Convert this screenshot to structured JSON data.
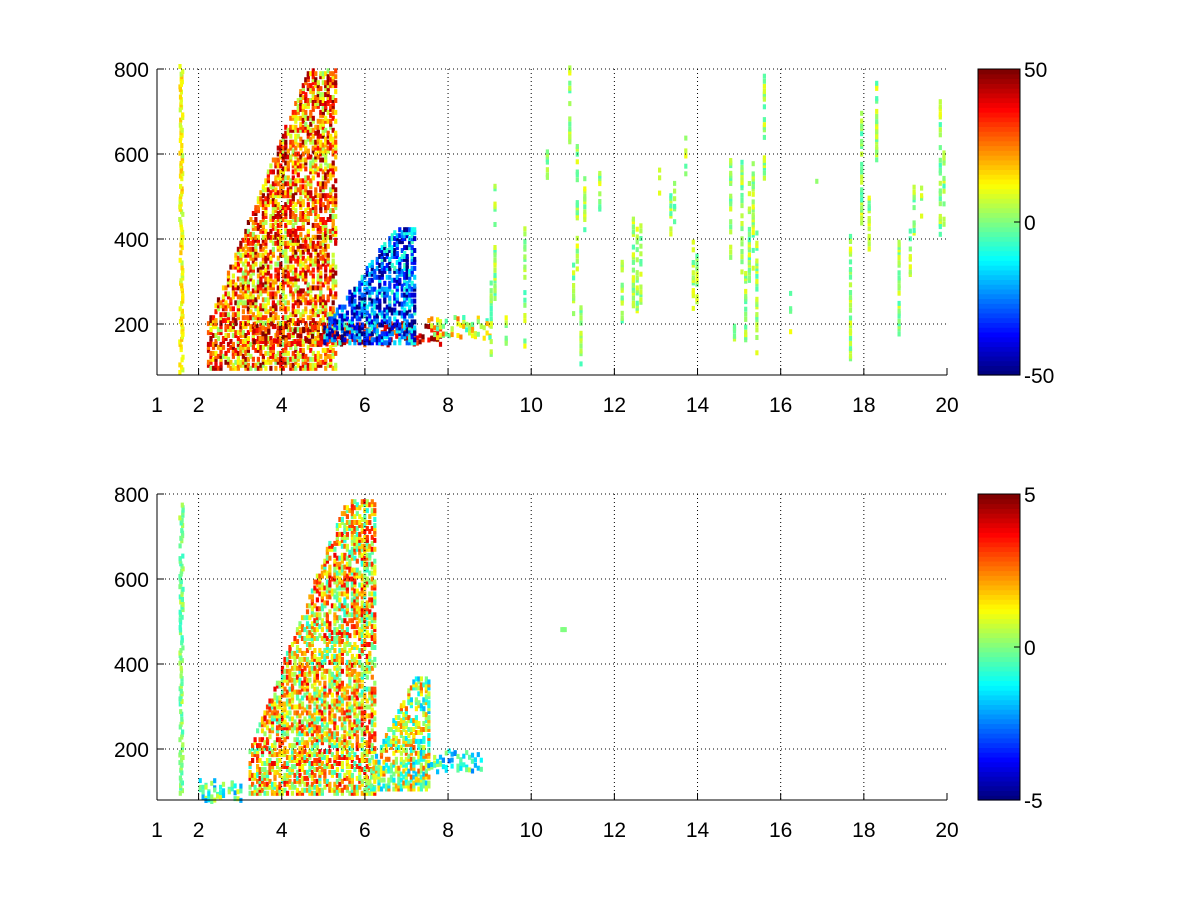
{
  "chart_data": [
    {
      "type": "heatmap",
      "title": "",
      "xlabel": "",
      "ylabel": "",
      "xlim": [
        1,
        20
      ],
      "ylim": [
        80,
        800
      ],
      "x_ticks": [
        1,
        2,
        4,
        6,
        8,
        10,
        12,
        14,
        16,
        18,
        20
      ],
      "y_ticks": [
        200,
        400,
        600,
        800
      ],
      "grid": true,
      "colormap": "jet",
      "color_range": [
        -50,
        50
      ],
      "colorbar_ticks": [
        -50,
        0,
        50
      ],
      "background_color": "#ffffff",
      "features": [
        {
          "label": "vertical band near x=1.5",
          "x": 1.55,
          "y_range": [
            80,
            800
          ],
          "value": 12
        },
        {
          "label": "rising ridge from x=2 to x=5",
          "x_range": [
            2.2,
            5.3
          ],
          "y_range": [
            90,
            790
          ],
          "value": 25
        },
        {
          "label": "strong band at y≈170",
          "x_range": [
            3.3,
            7.8
          ],
          "y": 170,
          "value": 40
        },
        {
          "label": "negative core near x=5..7",
          "x_range": [
            5.0,
            7.2
          ],
          "y_range": [
            150,
            420
          ],
          "value": -30
        },
        {
          "label": "tail toward x=9",
          "x_range": [
            7.5,
            9.0
          ],
          "y": 185,
          "value": 10
        },
        {
          "label": "sparse vertical streaks",
          "x_range": [
            9.0,
            20.0
          ],
          "y_range": [
            80,
            800
          ],
          "value": 5
        }
      ]
    },
    {
      "type": "heatmap",
      "title": "",
      "xlabel": "",
      "ylabel": "",
      "xlim": [
        1,
        20
      ],
      "ylim": [
        80,
        800
      ],
      "x_ticks": [
        1,
        2,
        4,
        6,
        8,
        10,
        12,
        14,
        16,
        18,
        20
      ],
      "y_ticks": [
        200,
        400,
        600,
        800
      ],
      "grid": true,
      "colormap": "jet",
      "color_range": [
        -5,
        5
      ],
      "colorbar_ticks": [
        -5,
        0,
        5
      ],
      "background_color": "#ffffff",
      "features": [
        {
          "label": "thin line near x=1.5",
          "x": 1.55,
          "y_range": [
            90,
            770
          ],
          "value": 0
        },
        {
          "label": "noisy plume x=3..6",
          "x_range": [
            3.2,
            6.2
          ],
          "y_range": [
            90,
            780
          ],
          "value": 1.5
        },
        {
          "label": "secondary cluster x=6..7.5",
          "x_range": [
            6.0,
            7.5
          ],
          "y_range": [
            100,
            360
          ],
          "value": 0.5
        },
        {
          "label": "tail toward x=8.8",
          "x_range": [
            7.5,
            8.8
          ],
          "y": 165,
          "value": -1
        },
        {
          "label": "low streak near x=2..3",
          "x_range": [
            2.0,
            3.0
          ],
          "y": 95,
          "value": -0.5
        },
        {
          "label": "isolated spot",
          "x": 10.7,
          "y": 475,
          "value": 0
        }
      ]
    }
  ]
}
